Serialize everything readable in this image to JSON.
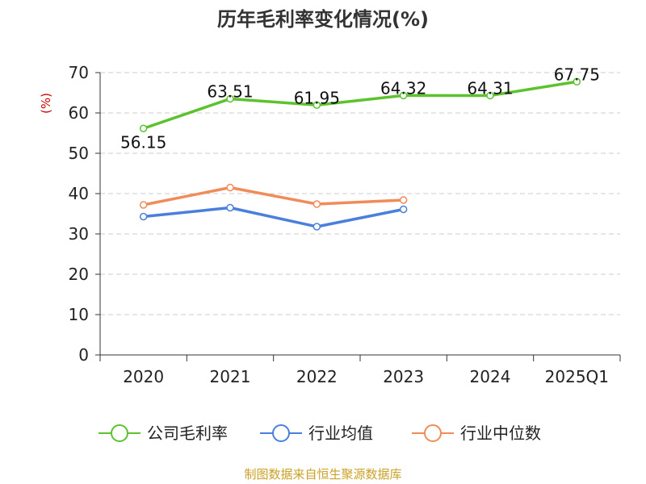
{
  "chart_data": {
    "type": "line",
    "title": "历年毛利率变化情况(%)",
    "ylabel": "(%)",
    "xlabel": "",
    "categories": [
      "2020",
      "2021",
      "2022",
      "2023",
      "2024",
      "2025Q1"
    ],
    "ylim": [
      0,
      70
    ],
    "yticks": [
      0,
      10,
      20,
      30,
      40,
      50,
      60,
      70
    ],
    "grid": true,
    "legend_position": "bottom",
    "series": [
      {
        "name": "公司毛利率",
        "color": "#5cc22e",
        "values": [
          56.15,
          63.51,
          61.95,
          64.32,
          64.31,
          67.75
        ],
        "labels": [
          "56.15",
          "63.51",
          "61.95",
          "64.32",
          "64.31",
          "67.75"
        ]
      },
      {
        "name": "行业均值",
        "color": "#4a7fdc",
        "values": [
          34.3,
          36.5,
          31.8,
          36.1,
          null,
          null
        ]
      },
      {
        "name": "行业中位数",
        "color": "#f08c5a",
        "values": [
          37.2,
          41.5,
          37.4,
          38.4,
          null,
          null
        ]
      }
    ]
  },
  "footer": {
    "source": "制图数据来自恒生聚源数据库"
  }
}
